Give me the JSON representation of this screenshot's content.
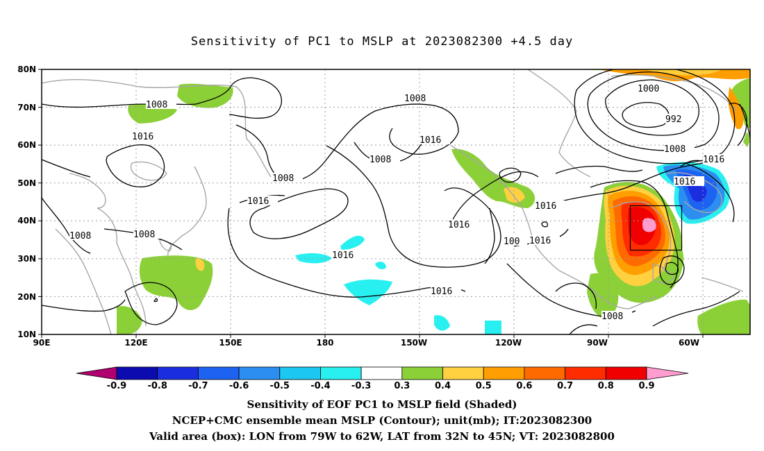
{
  "title": "Sensitivity of PC1 to MSLP at 2023082300 +4.5 day",
  "map": {
    "lat_ticks": [
      "80N",
      "70N",
      "60N",
      "50N",
      "40N",
      "30N",
      "20N",
      "10N"
    ],
    "lon_ticks": [
      "90E",
      "120E",
      "150E",
      "180",
      "150W",
      "120W",
      "90W",
      "60W"
    ],
    "contour_labels": [
      "1008",
      "1016",
      "1008",
      "1008",
      "1016",
      "1008",
      "1008",
      "1016",
      "1016",
      "1008",
      "1016",
      "1016",
      "1016",
      "1016",
      "100",
      "1016",
      "1016",
      "1008",
      "1000",
      "992",
      "1008",
      "1016"
    ]
  },
  "colorbar": {
    "labels": [
      "-0.9",
      "-0.8",
      "-0.7",
      "-0.6",
      "-0.5",
      "-0.4",
      "-0.3",
      "0.3",
      "0.4",
      "0.5",
      "0.6",
      "0.7",
      "0.8",
      "0.9"
    ],
    "colors": [
      "#b00070",
      "#0b0bb0",
      "#1a2ee0",
      "#1d62f0",
      "#2b8ef0",
      "#1cc8f0",
      "#28f0f0",
      "#ffffff",
      "#8cd038",
      "#ffd040",
      "#ff9e00",
      "#ff6a00",
      "#ff2c00",
      "#f00000",
      "#ff9cd0"
    ]
  },
  "caption": {
    "line1": "Sensitivity of EOF PC1 to MSLP field (Shaded)",
    "line2": "NCEP+CMC ensemble mean MSLP (Contour); unit(mb); IT:2023082300",
    "line3": "Valid area (box): LON from 79W to 62W, LAT from 32N to 45N; VT: 2023082800"
  }
}
